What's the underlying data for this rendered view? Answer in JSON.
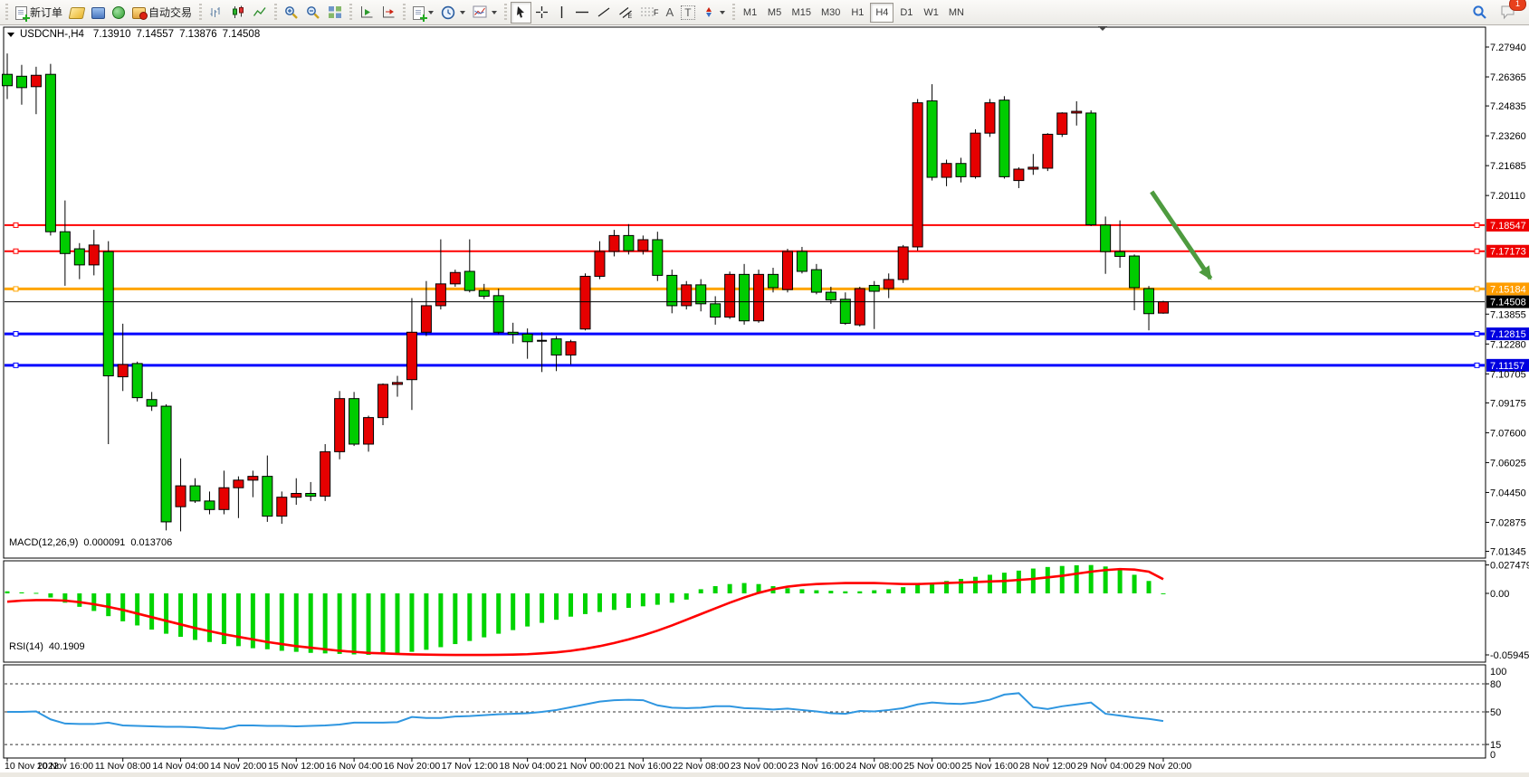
{
  "toolbar": {
    "new_order_label": "新订单",
    "autotrade_label": "自动交易",
    "timeframes": [
      "M1",
      "M5",
      "M15",
      "M30",
      "H1",
      "H4",
      "D1",
      "W1",
      "MN"
    ],
    "active_timeframe": "H4",
    "notification_badge": "1",
    "tool_glyphs": {
      "fibonacci": "F",
      "text": "A",
      "text_label": "T"
    }
  },
  "chart": {
    "title_symbol": "USDCNH-,H4",
    "title_open": "7.13910",
    "title_high": "7.14557",
    "title_low": "7.13876",
    "title_close": "7.14508"
  },
  "macd_panel": {
    "label": "MACD(12,26,9)",
    "value_main": "0.000091",
    "value_signal": "0.013706",
    "scale_max": "0.027479",
    "scale_zero": "0.00",
    "scale_min": "-0.059451"
  },
  "rsi_panel": {
    "label": "RSI(14)",
    "value": "40.1909",
    "scale_labels": [
      "100",
      "80",
      "50",
      "15",
      "0"
    ]
  },
  "chart_data": {
    "type": "candlestick",
    "symbol": "USDCNH",
    "period": "H4",
    "bull_color": "#e60000",
    "bear_color": "#00cc00",
    "price_axis_ticks": [
      7.2794,
      7.26365,
      7.24835,
      7.2326,
      7.21685,
      7.2011,
      7.13855,
      7.1228,
      7.10705,
      7.09175,
      7.076,
      7.06025,
      7.0445,
      7.02875,
      7.01345
    ],
    "x_labels": [
      "10 Nov 2022",
      "10 Nov 16:00",
      "11 Nov 08:00",
      "14 Nov 04:00",
      "14 Nov 20:00",
      "15 Nov 12:00",
      "16 Nov 04:00",
      "16 Nov 20:00",
      "17 Nov 12:00",
      "18 Nov 04:00",
      "21 Nov 00:00",
      "21 Nov 16:00",
      "22 Nov 08:00",
      "23 Nov 00:00",
      "23 Nov 16:00",
      "24 Nov 08:00",
      "25 Nov 00:00",
      "25 Nov 16:00",
      "28 Nov 12:00",
      "29 Nov 04:00",
      "29 Nov 20:00"
    ],
    "bars_per_label": 4,
    "candles_ohlc": [
      [
        7.265,
        7.276,
        7.252,
        7.259
      ],
      [
        7.264,
        7.27,
        7.249,
        7.258
      ],
      [
        7.2585,
        7.269,
        7.244,
        7.2645
      ],
      [
        7.265,
        7.2705,
        7.18,
        7.182
      ],
      [
        7.182,
        7.1985,
        7.1535,
        7.1705
      ],
      [
        7.173,
        7.176,
        7.157,
        7.1645
      ],
      [
        7.1645,
        7.183,
        7.159,
        7.175
      ],
      [
        7.1715,
        7.177,
        7.07,
        7.106
      ],
      [
        7.1055,
        7.1335,
        7.098,
        7.112
      ],
      [
        7.1125,
        7.1135,
        7.0925,
        7.0945
      ],
      [
        7.0935,
        7.0975,
        7.0875,
        7.09
      ],
      [
        7.09,
        7.091,
        7.0245,
        7.029
      ],
      [
        7.037,
        7.0625,
        7.024,
        7.048
      ],
      [
        7.048,
        7.052,
        7.039,
        7.04
      ],
      [
        7.04,
        7.045,
        7.033,
        7.0355
      ],
      [
        7.0355,
        7.056,
        7.033,
        7.047
      ],
      [
        7.047,
        7.053,
        7.031,
        7.051
      ],
      [
        7.051,
        7.056,
        7.042,
        7.053
      ],
      [
        7.053,
        7.064,
        7.029,
        7.032
      ],
      [
        7.032,
        7.045,
        7.028,
        7.042
      ],
      [
        7.042,
        7.052,
        7.038,
        7.044
      ],
      [
        7.044,
        7.05,
        7.04,
        7.0425
      ],
      [
        7.0425,
        7.07,
        7.04,
        7.066
      ],
      [
        7.066,
        7.098,
        7.062,
        7.094
      ],
      [
        7.094,
        7.0975,
        7.069,
        7.07
      ],
      [
        7.07,
        7.085,
        7.066,
        7.084
      ],
      [
        7.084,
        7.102,
        7.08,
        7.1015
      ],
      [
        7.1015,
        7.106,
        7.095,
        7.1025
      ],
      [
        7.104,
        7.147,
        7.088,
        7.129
      ],
      [
        7.129,
        7.156,
        7.127,
        7.143
      ],
      [
        7.143,
        7.178,
        7.141,
        7.1545
      ],
      [
        7.1545,
        7.162,
        7.153,
        7.1605
      ],
      [
        7.1611,
        7.178,
        7.15,
        7.151
      ],
      [
        7.151,
        7.1545,
        7.1465,
        7.148
      ],
      [
        7.1483,
        7.152,
        7.128,
        7.129
      ],
      [
        7.129,
        7.134,
        7.123,
        7.128
      ],
      [
        7.128,
        7.131,
        7.115,
        7.124
      ],
      [
        7.124,
        7.129,
        7.108,
        7.1245
      ],
      [
        7.1255,
        7.127,
        7.1085,
        7.117
      ],
      [
        7.117,
        7.125,
        7.112,
        7.124
      ],
      [
        7.1307,
        7.16,
        7.13,
        7.1585
      ],
      [
        7.1585,
        7.177,
        7.157,
        7.1716
      ],
      [
        7.1716,
        7.183,
        7.169,
        7.18
      ],
      [
        7.18,
        7.186,
        7.17,
        7.172
      ],
      [
        7.172,
        7.18,
        7.17,
        7.1778
      ],
      [
        7.1778,
        7.182,
        7.156,
        7.159
      ],
      [
        7.159,
        7.162,
        7.139,
        7.143
      ],
      [
        7.143,
        7.156,
        7.141,
        7.154
      ],
      [
        7.154,
        7.157,
        7.14,
        7.144
      ],
      [
        7.144,
        7.148,
        7.133,
        7.137
      ],
      [
        7.137,
        7.161,
        7.136,
        7.1595
      ],
      [
        7.1595,
        7.165,
        7.133,
        7.135
      ],
      [
        7.135,
        7.162,
        7.134,
        7.1595
      ],
      [
        7.1595,
        7.163,
        7.15,
        7.1525
      ],
      [
        7.1515,
        7.173,
        7.15,
        7.1716
      ],
      [
        7.1716,
        7.174,
        7.16,
        7.1611
      ],
      [
        7.162,
        7.165,
        7.149,
        7.1501
      ],
      [
        7.1501,
        7.153,
        7.144,
        7.146
      ],
      [
        7.1464,
        7.15,
        7.1329,
        7.1337
      ],
      [
        7.1329,
        7.153,
        7.132,
        7.152
      ],
      [
        7.1537,
        7.156,
        7.1307,
        7.1506
      ],
      [
        7.152,
        7.16,
        7.147,
        7.1568
      ],
      [
        7.1568,
        7.175,
        7.155,
        7.174
      ],
      [
        7.174,
        7.252,
        7.172,
        7.25
      ],
      [
        7.251,
        7.2598,
        7.209,
        7.2107
      ],
      [
        7.2107,
        7.22,
        7.206,
        7.218
      ],
      [
        7.218,
        7.221,
        7.208,
        7.211
      ],
      [
        7.211,
        7.236,
        7.21,
        7.234
      ],
      [
        7.234,
        7.252,
        7.232,
        7.25
      ],
      [
        7.2514,
        7.2535,
        7.21,
        7.211
      ],
      [
        7.209,
        7.216,
        7.205,
        7.215
      ],
      [
        7.215,
        7.223,
        7.212,
        7.216
      ],
      [
        7.2155,
        7.234,
        7.214,
        7.2334
      ],
      [
        7.2334,
        7.245,
        7.232,
        7.2446
      ],
      [
        7.2446,
        7.2508,
        7.238,
        7.2455
      ],
      [
        7.2446,
        7.246,
        7.185,
        7.1857
      ],
      [
        7.1855,
        7.19,
        7.1598,
        7.1715
      ],
      [
        7.1715,
        7.188,
        7.163,
        7.169
      ],
      [
        7.1692,
        7.17,
        7.1406,
        7.1525
      ],
      [
        7.152,
        7.1534,
        7.13,
        7.1388
      ],
      [
        7.1391,
        7.14557,
        7.13876,
        7.14508
      ]
    ],
    "horizontal_lines": [
      {
        "price": 7.18547,
        "color": "#ff0000",
        "badge": "#ee0000",
        "width": 2
      },
      {
        "price": 7.17173,
        "color": "#ff0000",
        "badge": "#ee0000",
        "width": 2
      },
      {
        "price": 7.15184,
        "color": "#ffa500",
        "badge": "#ff9d00",
        "width": 3
      },
      {
        "price": 7.12815,
        "color": "#0000ff",
        "badge": "#0000e0",
        "width": 3
      },
      {
        "price": 7.11157,
        "color": "#0000ff",
        "badge": "#0000e0",
        "width": 3
      }
    ],
    "current_price": 7.14508,
    "macd": {
      "range_max": 0.027479,
      "range_min": -0.059451,
      "histogram": [
        0.002,
        0.001,
        0.0005,
        -0.004,
        -0.009,
        -0.013,
        -0.017,
        -0.022,
        -0.027,
        -0.031,
        -0.035,
        -0.039,
        -0.042,
        -0.045,
        -0.047,
        -0.049,
        -0.051,
        -0.053,
        -0.054,
        -0.0555,
        -0.0565,
        -0.0575,
        -0.058,
        -0.0585,
        -0.059,
        -0.0594,
        -0.059,
        -0.058,
        -0.0565,
        -0.0545,
        -0.052,
        -0.049,
        -0.046,
        -0.0425,
        -0.039,
        -0.0355,
        -0.032,
        -0.0285,
        -0.0255,
        -0.0225,
        -0.02,
        -0.018,
        -0.016,
        -0.014,
        -0.0125,
        -0.011,
        -0.009,
        -0.006,
        0.004,
        0.007,
        0.009,
        0.01,
        0.009,
        0.007,
        0.005,
        0.004,
        0.003,
        0.0025,
        0.002,
        0.002,
        0.003,
        0.004,
        0.006,
        0.008,
        0.01,
        0.012,
        0.014,
        0.016,
        0.018,
        0.02,
        0.022,
        0.024,
        0.0255,
        0.0265,
        0.0272,
        0.0274,
        0.026,
        0.023,
        0.018,
        0.012,
        0.0001
      ],
      "signal": [
        -0.008,
        -0.007,
        -0.0065,
        -0.0065,
        -0.007,
        -0.0085,
        -0.0105,
        -0.013,
        -0.016,
        -0.0195,
        -0.023,
        -0.0265,
        -0.03,
        -0.0335,
        -0.0365,
        -0.0395,
        -0.042,
        -0.0445,
        -0.047,
        -0.049,
        -0.051,
        -0.0525,
        -0.054,
        -0.0555,
        -0.0565,
        -0.0575,
        -0.058,
        -0.0585,
        -0.059,
        -0.0592,
        -0.0594,
        -0.0595,
        -0.0595,
        -0.0595,
        -0.0594,
        -0.0592,
        -0.0588,
        -0.058,
        -0.057,
        -0.0555,
        -0.0535,
        -0.051,
        -0.048,
        -0.0445,
        -0.0405,
        -0.036,
        -0.031,
        -0.0255,
        -0.02,
        -0.0145,
        -0.009,
        -0.004,
        0.0005,
        0.004,
        0.0065,
        0.008,
        0.009,
        0.0095,
        0.01,
        0.01,
        0.01,
        0.0095,
        0.009,
        0.009,
        0.0095,
        0.01,
        0.0105,
        0.011,
        0.0115,
        0.012,
        0.013,
        0.014,
        0.0155,
        0.017,
        0.019,
        0.021,
        0.0225,
        0.0235,
        0.023,
        0.021,
        0.0137
      ],
      "histogram_color": "#00d400",
      "signal_color": "#ff0000"
    },
    "rsi": {
      "range": [
        0,
        100
      ],
      "levels": [
        80,
        50,
        15
      ],
      "line_color": "#2f96e0",
      "values": [
        50,
        50,
        50.5,
        42,
        37.5,
        37,
        37,
        38.5,
        35.5,
        35,
        34.5,
        34,
        34,
        33.5,
        32.5,
        32,
        35.5,
        35.5,
        35,
        35,
        34.5,
        35,
        35.5,
        36.5,
        38.5,
        38.5,
        38.5,
        39,
        44.5,
        43.5,
        43.5,
        45,
        45.5,
        46.5,
        47.5,
        48,
        48.5,
        50,
        52,
        55,
        58,
        61,
        62.5,
        63,
        62.5,
        57,
        54.5,
        54,
        54.5,
        56,
        56,
        54,
        53.5,
        52.5,
        53.5,
        52,
        50.5,
        48.5,
        48,
        51,
        50.5,
        52,
        54,
        58,
        60,
        59,
        58.5,
        60,
        63,
        68.5,
        70,
        55,
        53,
        56,
        58,
        60,
        48,
        46,
        44,
        42.5,
        40.2
      ]
    },
    "trend_arrow": {
      "from_bar": 79.2,
      "from_price": 7.2031,
      "to_bar": 83.9,
      "to_price": 7.1535,
      "color": "#4e9b3f"
    }
  }
}
